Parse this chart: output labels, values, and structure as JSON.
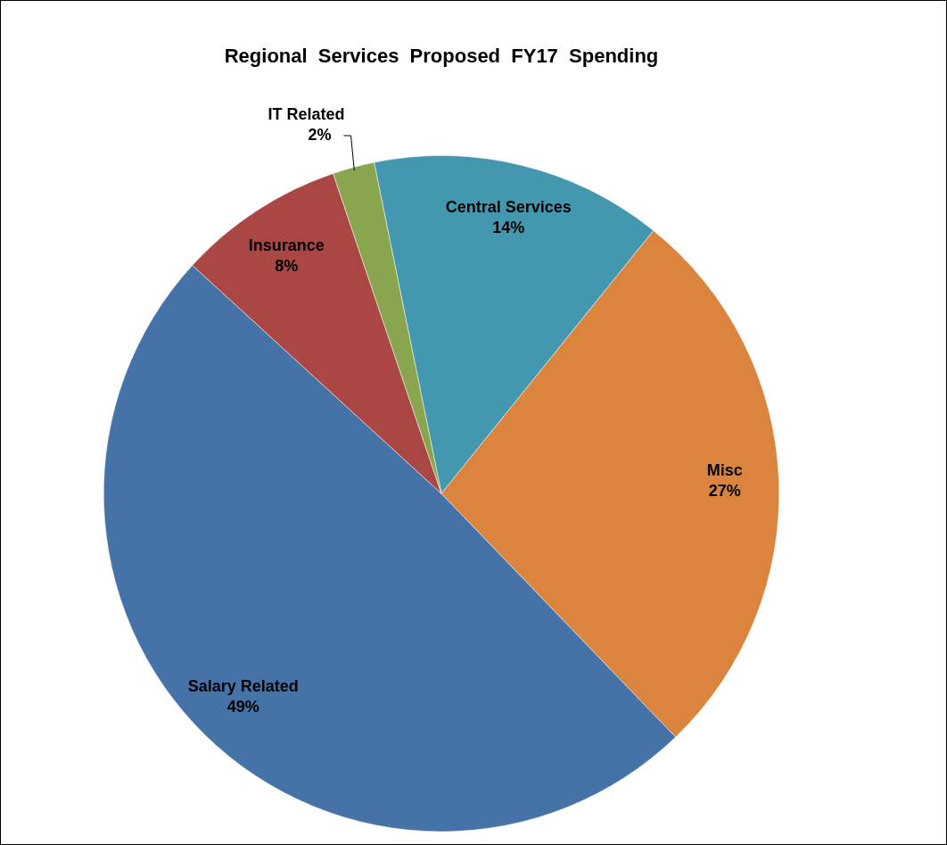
{
  "chart_data": {
    "type": "pie",
    "title": "Regional  Services  Proposed  FY17  Spending",
    "categories": [
      "Central Services",
      "Misc",
      "Salary Related",
      "Insurance",
      "IT Related"
    ],
    "values": [
      14,
      27,
      49,
      8,
      2
    ],
    "value_labels": [
      "14%",
      "27%",
      "49%",
      "8%",
      "2%"
    ],
    "colors": [
      "#4398b0",
      "#db843d",
      "#4572a7",
      "#aa4643",
      "#89a54e"
    ],
    "legend": false
  }
}
